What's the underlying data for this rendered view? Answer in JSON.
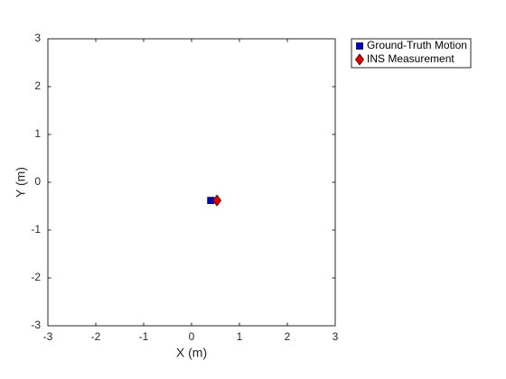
{
  "chart_data": {
    "type": "scatter",
    "xlabel": "X (m)",
    "ylabel": "Y (m)",
    "xlim": [
      -3,
      3
    ],
    "ylim": [
      -3,
      3
    ],
    "xticks": [
      -3,
      -2,
      -1,
      0,
      1,
      2,
      3
    ],
    "yticks": [
      -3,
      -2,
      -1,
      0,
      1,
      2,
      3
    ],
    "legend": "outside-top-right",
    "series": [
      {
        "name": "Ground-Truth Motion",
        "color": "#0000cc",
        "marker": "square",
        "x": [
          0.4
        ],
        "y": [
          -0.38
        ]
      },
      {
        "name": "INS Measurement",
        "color": "#e00000",
        "marker": "diamond",
        "x": [
          0.53
        ],
        "y": [
          -0.38
        ]
      }
    ]
  }
}
